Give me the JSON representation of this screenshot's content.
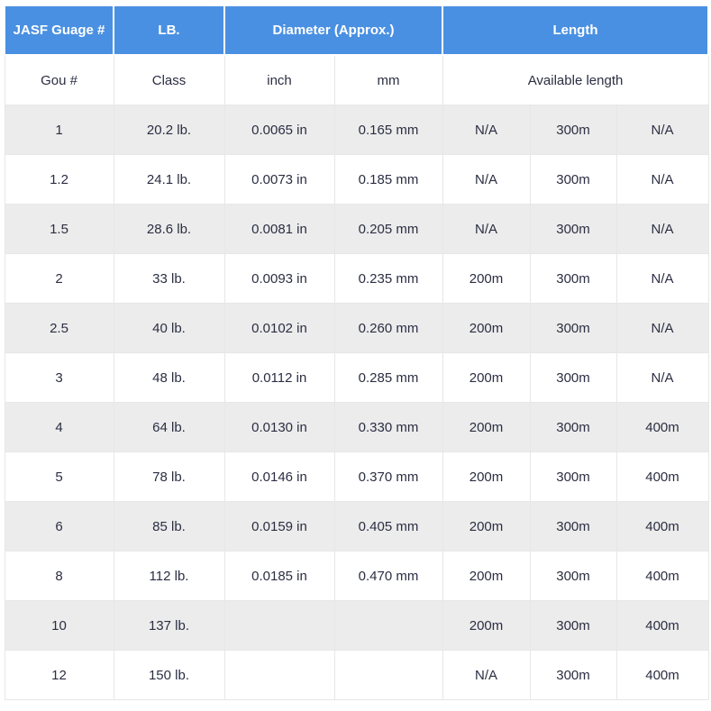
{
  "colors": {
    "header_bg": "#4a90e2",
    "header_text": "#ffffff",
    "body_text": "#2b2e42",
    "stripe_bg": "#ececec",
    "border": "#e7e7e7"
  },
  "chart_data": {
    "type": "table",
    "header_row": [
      {
        "label": "JASF Guage #",
        "colspan": 1
      },
      {
        "label": "LB.",
        "colspan": 1
      },
      {
        "label": "Diameter (Approx.)",
        "colspan": 2
      },
      {
        "label": "Length",
        "colspan": 3
      }
    ],
    "subheader_row": [
      {
        "label": "Gou #",
        "colspan": 1
      },
      {
        "label": "Class",
        "colspan": 1
      },
      {
        "label": "inch",
        "colspan": 1
      },
      {
        "label": "mm",
        "colspan": 1
      },
      {
        "label": "Available length",
        "colspan": 3
      }
    ],
    "rows": [
      [
        "1",
        "20.2 lb.",
        "0.0065 in",
        "0.165 mm",
        "N/A",
        "300m",
        "N/A"
      ],
      [
        "1.2",
        "24.1 lb.",
        "0.0073 in",
        "0.185 mm",
        "N/A",
        "300m",
        "N/A"
      ],
      [
        "1.5",
        "28.6 lb.",
        "0.0081 in",
        "0.205 mm",
        "N/A",
        "300m",
        "N/A"
      ],
      [
        "2",
        "33 lb.",
        "0.0093 in",
        "0.235 mm",
        "200m",
        "300m",
        "N/A"
      ],
      [
        "2.5",
        "40 lb.",
        "0.0102 in",
        "0.260 mm",
        "200m",
        "300m",
        "N/A"
      ],
      [
        "3",
        "48 lb.",
        "0.0112 in",
        "0.285 mm",
        "200m",
        "300m",
        "N/A"
      ],
      [
        "4",
        "64 lb.",
        "0.0130 in",
        "0.330 mm",
        "200m",
        "300m",
        "400m"
      ],
      [
        "5",
        "78 lb.",
        "0.0146 in",
        "0.370 mm",
        "200m",
        "300m",
        "400m"
      ],
      [
        "6",
        "85 lb.",
        "0.0159 in",
        "0.405 mm",
        "200m",
        "300m",
        "400m"
      ],
      [
        "8",
        "112 lb.",
        "0.0185 in",
        "0.470 mm",
        "200m",
        "300m",
        "400m"
      ],
      [
        "10",
        "137 lb.",
        "",
        "",
        "200m",
        "300m",
        "400m"
      ],
      [
        "12",
        "150 lb.",
        "",
        "",
        "N/A",
        "300m",
        "400m"
      ]
    ]
  }
}
